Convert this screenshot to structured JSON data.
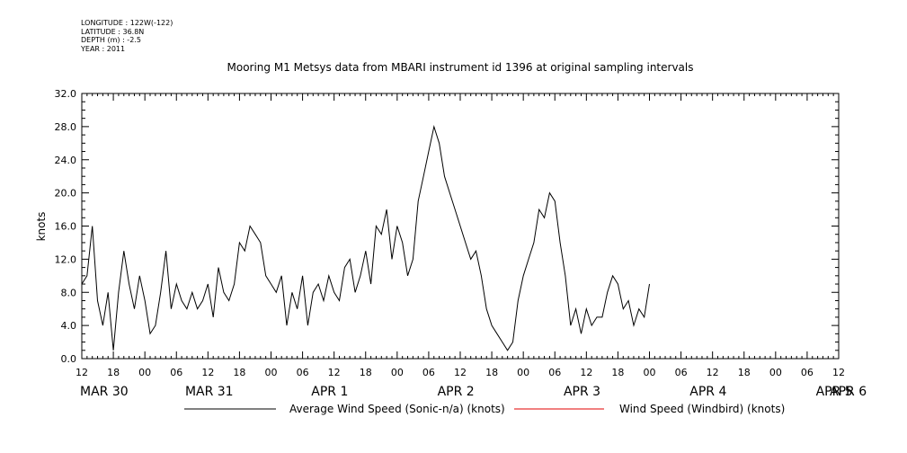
{
  "header": {
    "longitude": "LONGITUDE : 122W(-122)",
    "latitude": "LATITUDE : 36.8N",
    "depth": "DEPTH (m) : -2.5",
    "year": "YEAR : 2011"
  },
  "chart_data": {
    "type": "line",
    "title": "Mooring M1 Metsys data from MBARI instrument id 1396 at original sampling intervals",
    "ylabel": "knots",
    "xlabel": "",
    "ylim": [
      0,
      32
    ],
    "yticks": [
      "0.0",
      "4.0",
      "8.0",
      "12.0",
      "16.0",
      "20.0",
      "24.0",
      "28.0",
      "32.0"
    ],
    "xlim_hours": [
      0,
      144
    ],
    "hour_ticks": [
      "12",
      "18",
      "00",
      "06",
      "12",
      "18",
      "00",
      "06",
      "12",
      "18",
      "00",
      "06",
      "12",
      "18",
      "00",
      "06",
      "12",
      "18",
      "00",
      "06",
      "12",
      "18",
      "00",
      "06",
      "12"
    ],
    "date_labels": [
      {
        "text": "MAR 30",
        "hour": 0
      },
      {
        "text": "MAR 31",
        "hour": 20
      },
      {
        "text": "APR  1",
        "hour": 44
      },
      {
        "text": "APR  2",
        "hour": 68
      },
      {
        "text": "APR  3",
        "hour": 92
      },
      {
        "text": "APR  4",
        "hour": 116
      },
      {
        "text": "APR  5",
        "hour": 140
      },
      {
        "text": "APR  6",
        "hour": 164
      }
    ],
    "grid": false,
    "legend_position": "bottom",
    "series": [
      {
        "name": "Average Wind Speed (Sonic-n/a) (knots)",
        "color": "#000000",
        "x": [
          0,
          1,
          2,
          3,
          4,
          5,
          6,
          7,
          8,
          9,
          10,
          11,
          12,
          13,
          14,
          15,
          16,
          17,
          18,
          19,
          20,
          21,
          22,
          23,
          24,
          25,
          26,
          27,
          28,
          29,
          30,
          31,
          32,
          33,
          34,
          35,
          36,
          37,
          38,
          39,
          40,
          41,
          42,
          43,
          44,
          45,
          46,
          47,
          48,
          49,
          50,
          51,
          52,
          53,
          54,
          55,
          56,
          57,
          58,
          59,
          60,
          61,
          62,
          63,
          64,
          65,
          66,
          67,
          68,
          69,
          70,
          71,
          72,
          73,
          74,
          75,
          76,
          77,
          78,
          79,
          80,
          81,
          82,
          83,
          84,
          85,
          86,
          87,
          88,
          89,
          90,
          91,
          92,
          93,
          94,
          95,
          96,
          97,
          98,
          99,
          100,
          101,
          102,
          103,
          104,
          105,
          106,
          107,
          108,
          109,
          110,
          111,
          112,
          113,
          114,
          115,
          116,
          117,
          118,
          119,
          120,
          121,
          122,
          123,
          124,
          125,
          126,
          127,
          128,
          129,
          130,
          131,
          132,
          133,
          134,
          135,
          136,
          137,
          138,
          139,
          140,
          141,
          142,
          143,
          144
        ],
        "y": [
          9,
          10,
          16,
          7,
          4,
          8,
          1,
          8,
          13,
          9,
          6,
          10,
          7,
          3,
          4,
          8,
          13,
          6,
          9,
          7,
          6,
          8,
          6,
          7,
          9,
          5,
          11,
          8,
          7,
          9,
          14,
          13,
          16,
          15,
          14,
          10,
          9,
          8,
          10,
          4,
          8,
          6,
          10,
          4,
          8,
          9,
          7,
          10,
          8,
          7,
          11,
          12,
          8,
          10,
          13,
          9,
          16,
          15,
          18,
          12,
          16,
          14,
          10,
          12,
          19,
          22,
          25,
          28,
          26,
          22,
          20,
          18,
          16,
          14,
          12,
          13,
          10,
          6,
          4,
          3,
          2,
          1,
          2,
          7,
          10,
          12,
          14,
          18,
          17,
          20,
          19,
          14,
          10,
          4,
          6,
          3,
          6,
          4,
          5,
          5,
          8,
          10,
          9,
          6,
          7,
          4,
          6,
          5,
          9,
          null,
          null,
          null,
          null,
          null,
          null,
          null,
          null,
          null,
          null,
          null,
          null,
          null,
          null,
          null,
          null,
          null,
          null,
          null,
          null,
          null,
          null,
          null,
          null,
          null,
          null,
          null,
          null,
          null,
          null,
          null,
          null,
          null,
          null,
          null,
          null
        ]
      },
      {
        "name": "Wind Speed (Windbird) (knots)",
        "color": "#e00000",
        "x": [
          0
        ],
        "y": [
          9
        ]
      }
    ]
  }
}
